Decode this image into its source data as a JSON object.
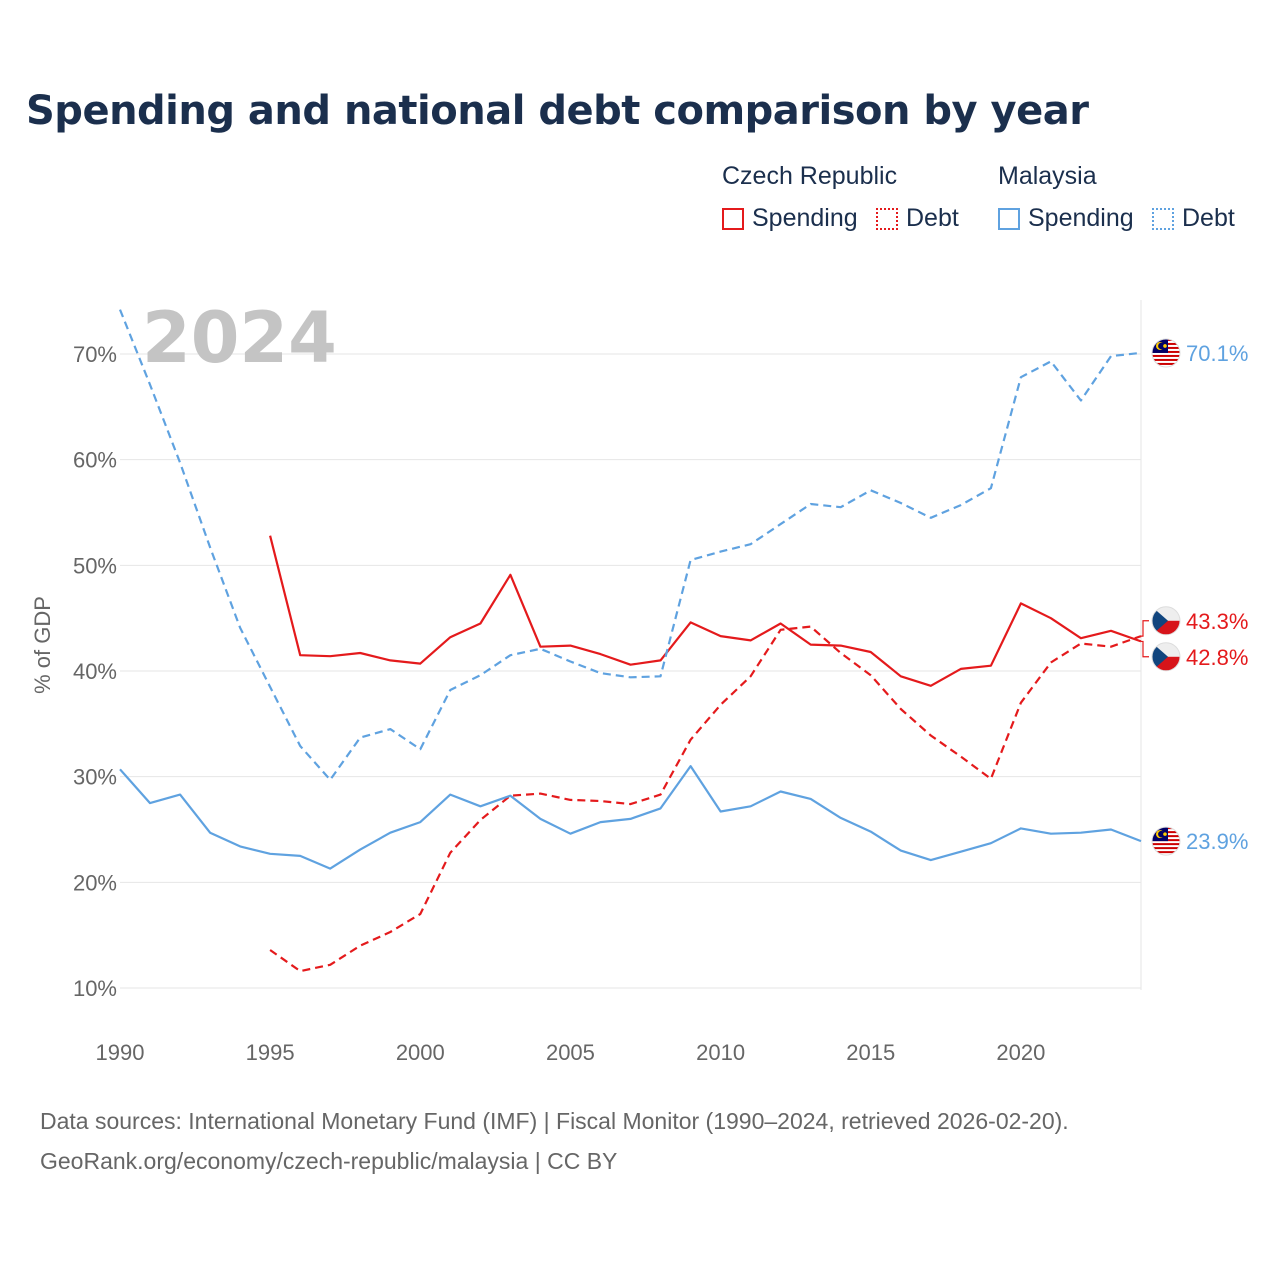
{
  "title": "Spending and national debt comparison by year",
  "legend": {
    "groups": [
      {
        "country": "Czech Republic",
        "spending": "Spending",
        "debt": "Debt",
        "color": "#e41a1c"
      },
      {
        "country": "Malaysia",
        "spending": "Spending",
        "debt": "Debt",
        "color": "#5fa2e0"
      }
    ]
  },
  "footer": {
    "line1": "Data sources: International Monetary Fund (IMF) | Fiscal Monitor (1990–2024, retrieved 2026-02-20).",
    "line2": "GeoRank.org/economy/czech-republic/malaysia | CC BY"
  },
  "chart_data": {
    "type": "line",
    "year_label": "2024",
    "ylabel": "% of GDP",
    "ylim": [
      8,
      75
    ],
    "xlim": [
      1990,
      2024
    ],
    "x_ticks": [
      1990,
      1995,
      2000,
      2005,
      2010,
      2015,
      2020
    ],
    "x_tick_labels": [
      "1990",
      "1995",
      "2000",
      "2005",
      "2010",
      "2015",
      "2020"
    ],
    "y_ticks": [
      10,
      20,
      30,
      40,
      50,
      60,
      70
    ],
    "y_tick_labels": [
      "10%",
      "20%",
      "30%",
      "40%",
      "50%",
      "60%",
      "70%"
    ],
    "series": [
      {
        "name": "Czech Republic Spending",
        "color": "#e41a1c",
        "dash": false,
        "x": [
          1995,
          1996,
          1997,
          1998,
          1999,
          2000,
          2001,
          2002,
          2003,
          2004,
          2005,
          2006,
          2007,
          2008,
          2009,
          2010,
          2011,
          2012,
          2013,
          2014,
          2015,
          2016,
          2017,
          2018,
          2019,
          2020,
          2021,
          2022,
          2023,
          2024
        ],
        "values": [
          52.8,
          41.5,
          41.4,
          41.7,
          41.0,
          40.7,
          43.2,
          44.5,
          49.1,
          42.3,
          42.4,
          41.6,
          40.6,
          41.0,
          44.6,
          43.3,
          42.9,
          44.5,
          42.5,
          42.4,
          41.8,
          39.5,
          38.6,
          40.2,
          40.5,
          46.4,
          45.0,
          43.1,
          43.8,
          42.8
        ],
        "end_label": "42.8%"
      },
      {
        "name": "Czech Republic Debt",
        "color": "#e41a1c",
        "dash": true,
        "x": [
          1995,
          1996,
          1997,
          1998,
          1999,
          2000,
          2001,
          2002,
          2003,
          2004,
          2005,
          2006,
          2007,
          2008,
          2009,
          2010,
          2011,
          2012,
          2013,
          2014,
          2015,
          2016,
          2017,
          2018,
          2019,
          2020,
          2021,
          2022,
          2023,
          2024
        ],
        "values": [
          13.6,
          11.6,
          12.2,
          14.0,
          15.3,
          17.0,
          22.8,
          25.9,
          28.2,
          28.4,
          27.8,
          27.7,
          27.4,
          28.3,
          33.5,
          36.8,
          39.5,
          43.9,
          44.2,
          41.7,
          39.6,
          36.4,
          33.9,
          31.9,
          29.8,
          37.0,
          40.8,
          42.6,
          42.3,
          43.3
        ],
        "end_label": "43.3%"
      },
      {
        "name": "Malaysia Spending",
        "color": "#5fa2e0",
        "dash": false,
        "x": [
          1990,
          1991,
          1992,
          1993,
          1994,
          1995,
          1996,
          1997,
          1998,
          1999,
          2000,
          2001,
          2002,
          2003,
          2004,
          2005,
          2006,
          2007,
          2008,
          2009,
          2010,
          2011,
          2012,
          2013,
          2014,
          2015,
          2016,
          2017,
          2018,
          2019,
          2020,
          2021,
          2022,
          2023,
          2024
        ],
        "values": [
          30.7,
          27.5,
          28.3,
          24.7,
          23.4,
          22.7,
          22.5,
          21.3,
          23.1,
          24.7,
          25.7,
          28.3,
          27.2,
          28.2,
          26.0,
          24.6,
          25.7,
          26.0,
          27.0,
          31.0,
          26.7,
          27.2,
          28.6,
          27.9,
          26.1,
          24.8,
          23.0,
          22.1,
          22.9,
          23.7,
          25.1,
          24.6,
          24.7,
          25.0,
          23.9
        ],
        "end_label": "23.9%"
      },
      {
        "name": "Malaysia Debt",
        "color": "#5fa2e0",
        "dash": true,
        "x": [
          1990,
          1991,
          1992,
          1993,
          1994,
          1995,
          1996,
          1997,
          1998,
          1999,
          2000,
          2001,
          2002,
          2003,
          2004,
          2005,
          2006,
          2007,
          2008,
          2009,
          2010,
          2011,
          2012,
          2013,
          2014,
          2015,
          2016,
          2017,
          2018,
          2019,
          2020,
          2021,
          2022,
          2023,
          2024
        ],
        "values": [
          74.2,
          67.1,
          59.7,
          51.7,
          44.1,
          38.5,
          32.9,
          29.7,
          33.7,
          34.5,
          32.6,
          38.2,
          39.6,
          41.5,
          42.1,
          40.9,
          39.8,
          39.4,
          39.5,
          50.5,
          51.3,
          52.0,
          53.9,
          55.8,
          55.5,
          57.1,
          55.9,
          54.5,
          55.7,
          57.3,
          67.8,
          69.3,
          65.6,
          69.8,
          70.1
        ],
        "end_label": "70.1%"
      }
    ]
  }
}
